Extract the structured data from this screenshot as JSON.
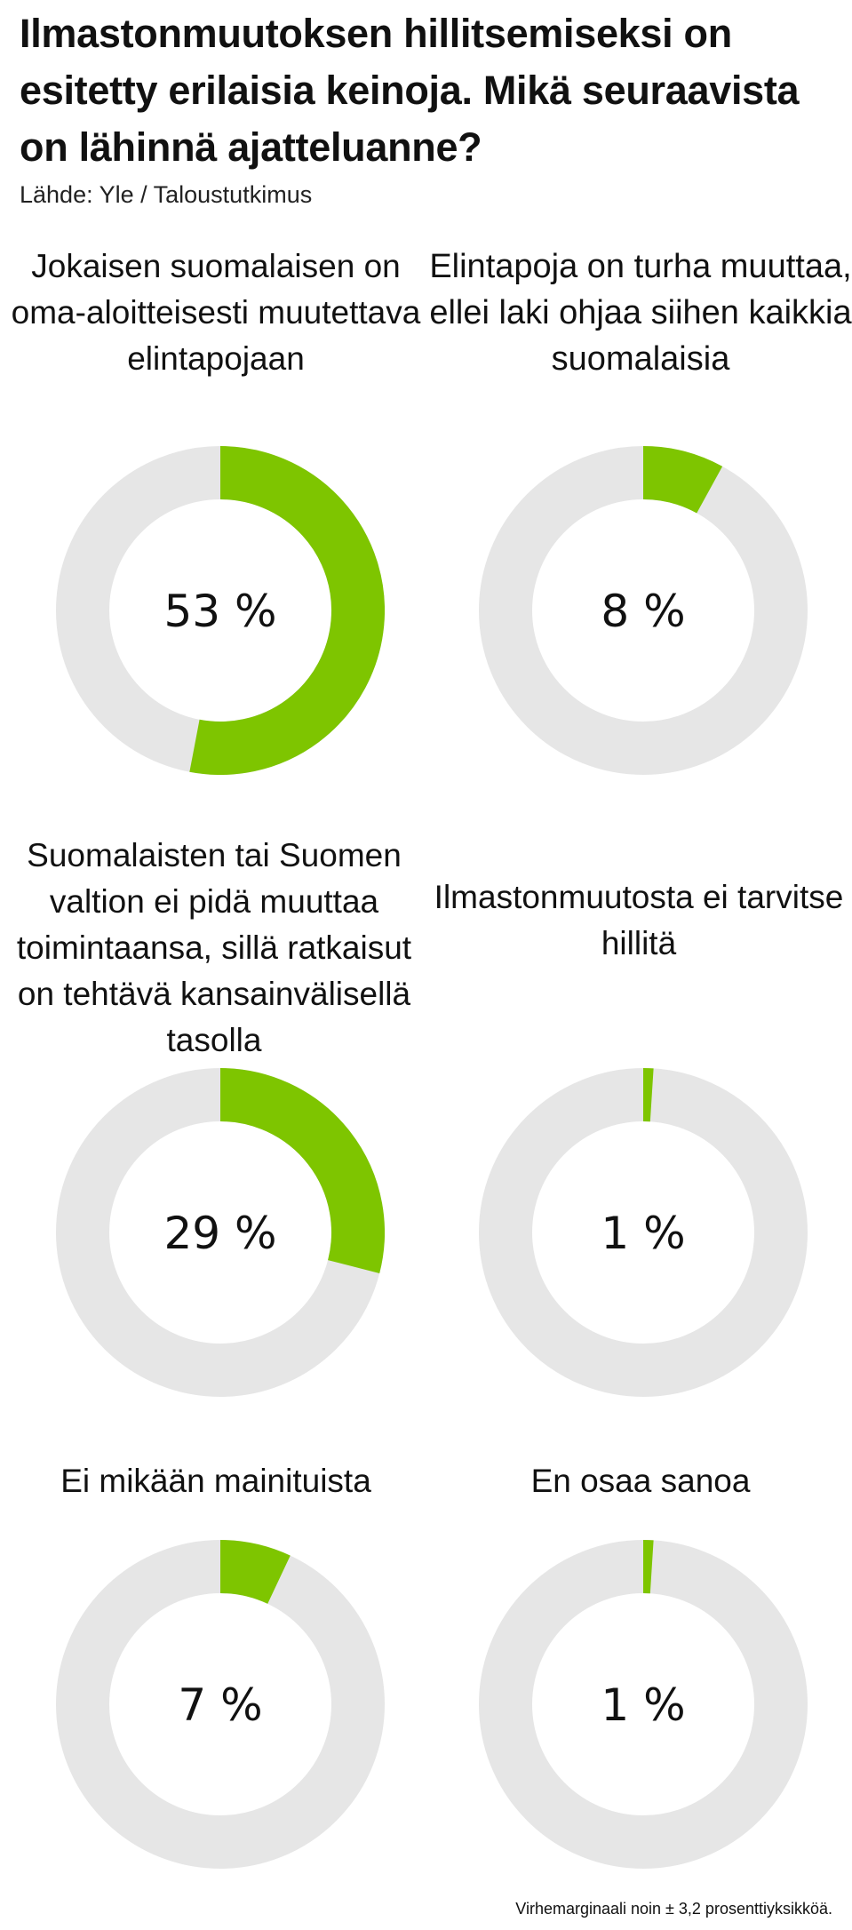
{
  "title": "Ilmastonmuutoksen hillitsemiseksi on esitetty erilaisia keinoja. Mikä seuraavista on lähinnä ajatteluanne?",
  "source": "Lähde: Yle / Taloustutkimus",
  "footnote": "Virhemarginaali noin ± 3,2 prosenttiyksikköä.",
  "colors": {
    "accent": "#7ec500",
    "track": "#e6e6e6"
  },
  "chart_data": [
    {
      "type": "pie",
      "title": "Jokaisen suomalaisen on oma-aloitteisesti muutettava elintapojaan",
      "value": 53,
      "value_label": "53 %",
      "max": 100
    },
    {
      "type": "pie",
      "title": "Elintapoja on turha muuttaa, ellei laki ohjaa siihen kaikkia suomalaisia",
      "value": 8,
      "value_label": "8 %",
      "max": 100
    },
    {
      "type": "pie",
      "title": "Suomalaisten tai Suomen valtion ei pidä muuttaa toimintaansa, sillä ratkaisut on tehtävä kansainvälisellä tasolla",
      "value": 29,
      "value_label": "29 %",
      "max": 100
    },
    {
      "type": "pie",
      "title": "Ilmastonmuutosta ei tarvitse hillitä",
      "value": 1,
      "value_label": "1 %",
      "max": 100
    },
    {
      "type": "pie",
      "title": "Ei mikään mainituista",
      "value": 7,
      "value_label": "7 %",
      "max": 100
    },
    {
      "type": "pie",
      "title": "En osaa sanoa",
      "value": 1,
      "value_label": "1 %",
      "max": 100
    }
  ]
}
